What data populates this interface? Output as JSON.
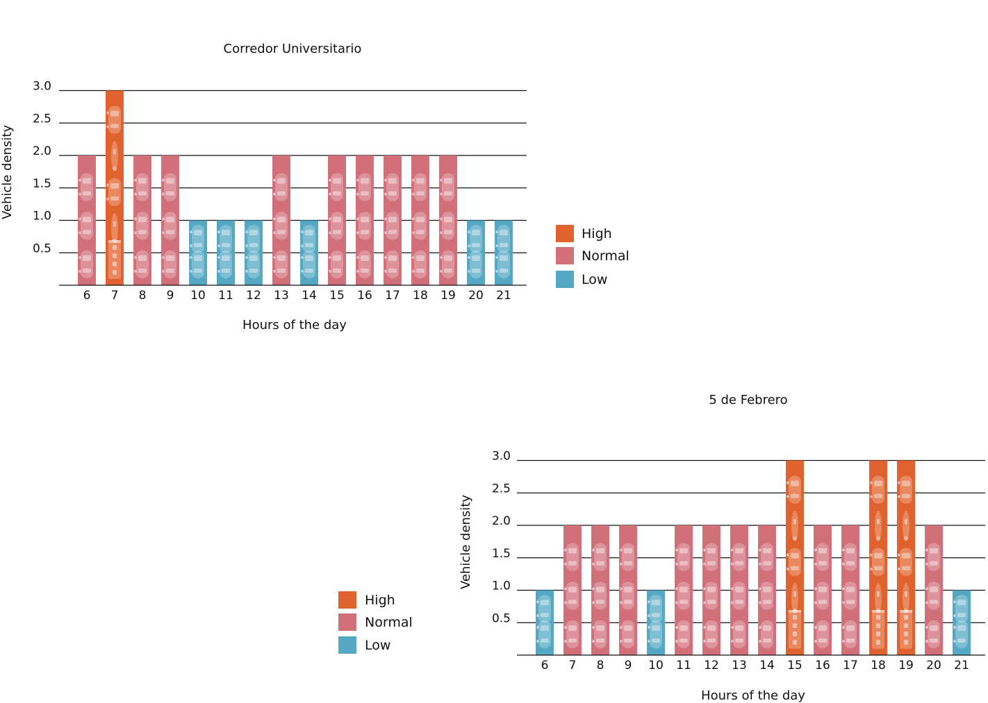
{
  "colors": {
    "High": "#e0622e",
    "Normal": "#d2707a",
    "Low": "#55a8c4",
    "grid": "#111111"
  },
  "icons": [
    "car-icon",
    "bus-icon",
    "motorcycle-icon"
  ],
  "chart_data": [
    {
      "type": "bar",
      "title": "Corredor Universitario",
      "xlabel": "Hours of the day",
      "ylabel": "Vehicle density",
      "ylim": [
        0,
        3.0
      ],
      "yticks": [
        "0.5",
        "1.0",
        "1.5",
        "2.0",
        "2.5",
        "3.0"
      ],
      "categories": [
        "6",
        "7",
        "8",
        "9",
        "10",
        "11",
        "12",
        "13",
        "14",
        "15",
        "16",
        "17",
        "18",
        "19",
        "20",
        "21"
      ],
      "values": [
        2.0,
        3.0,
        2.0,
        2.0,
        1.0,
        1.0,
        1.0,
        2.0,
        1.0,
        2.0,
        2.0,
        2.0,
        2.0,
        2.0,
        1.0,
        1.0
      ],
      "levels": [
        "Normal",
        "High",
        "Normal",
        "Normal",
        "Low",
        "Low",
        "Low",
        "Normal",
        "Low",
        "Normal",
        "Normal",
        "Normal",
        "Normal",
        "Normal",
        "Low",
        "Low"
      ],
      "legend": [
        "High",
        "Normal",
        "Low"
      ],
      "legend_position": "right",
      "grid": true
    },
    {
      "type": "bar",
      "title": "5 de Febrero",
      "xlabel": "Hours of the day",
      "ylabel": "Vehicle density",
      "ylim": [
        0,
        3.0
      ],
      "yticks": [
        "0.5",
        "1.0",
        "1.5",
        "2.0",
        "2.5",
        "3.0"
      ],
      "categories": [
        "6",
        "7",
        "8",
        "9",
        "10",
        "11",
        "12",
        "13",
        "14",
        "15",
        "16",
        "17",
        "18",
        "19",
        "20",
        "21"
      ],
      "values": [
        1.0,
        2.0,
        2.0,
        2.0,
        1.0,
        2.0,
        2.0,
        2.0,
        2.0,
        3.0,
        2.0,
        2.0,
        3.0,
        3.0,
        2.0,
        1.0
      ],
      "levels": [
        "Low",
        "Normal",
        "Normal",
        "Normal",
        "Low",
        "Normal",
        "Normal",
        "Normal",
        "Normal",
        "High",
        "Normal",
        "Normal",
        "High",
        "High",
        "Normal",
        "Low"
      ],
      "legend": [
        "High",
        "Normal",
        "Low"
      ],
      "legend_position": "left",
      "grid": true
    }
  ]
}
